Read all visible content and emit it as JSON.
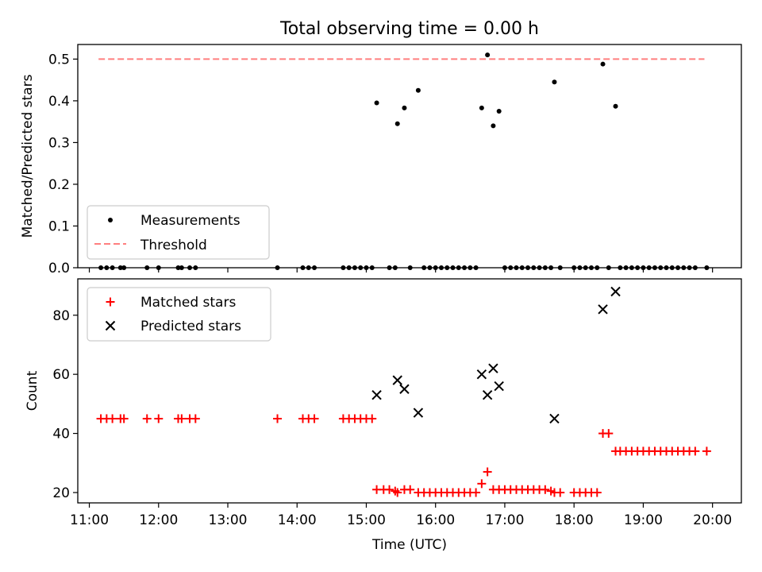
{
  "figure": {
    "title": "Total observing time = 0.00 h"
  },
  "chart_data": [
    {
      "type": "scatter",
      "panel": "ratio",
      "ylabel": "Matched/Predicted stars",
      "ylim": [
        0,
        0.535
      ],
      "yticks": [
        0.0,
        0.1,
        0.2,
        0.3,
        0.4,
        0.5
      ],
      "ytick_labels": [
        "0.0",
        "0.1",
        "0.2",
        "0.3",
        "0.4",
        "0.5"
      ],
      "grid": false,
      "legend_position": "lower-left",
      "series": [
        {
          "name": "Measurements",
          "marker": "dot",
          "color": "#000000",
          "points": [
            [
              "11:10",
              0
            ],
            [
              "11:15",
              0
            ],
            [
              "11:20",
              0
            ],
            [
              "11:27",
              0
            ],
            [
              "11:30",
              0
            ],
            [
              "11:50",
              0
            ],
            [
              "12:00",
              0
            ],
            [
              "12:17",
              0
            ],
            [
              "12:20",
              0
            ],
            [
              "12:27",
              0
            ],
            [
              "12:32",
              0
            ],
            [
              "13:43",
              0
            ],
            [
              "14:05",
              0
            ],
            [
              "14:10",
              0
            ],
            [
              "14:15",
              0
            ],
            [
              "14:40",
              0
            ],
            [
              "14:45",
              0
            ],
            [
              "14:50",
              0
            ],
            [
              "14:55",
              0
            ],
            [
              "15:00",
              0
            ],
            [
              "15:05",
              0
            ],
            [
              "15:09",
              0.395
            ],
            [
              "15:20",
              0
            ],
            [
              "15:25",
              0
            ],
            [
              "15:27",
              0.345
            ],
            [
              "15:33",
              0.383
            ],
            [
              "15:38",
              0
            ],
            [
              "15:45",
              0.425
            ],
            [
              "15:50",
              0
            ],
            [
              "15:55",
              0
            ],
            [
              "16:00",
              0
            ],
            [
              "16:05",
              0
            ],
            [
              "16:10",
              0
            ],
            [
              "16:15",
              0
            ],
            [
              "16:20",
              0
            ],
            [
              "16:25",
              0
            ],
            [
              "16:30",
              0
            ],
            [
              "16:35",
              0
            ],
            [
              "16:40",
              0.383
            ],
            [
              "16:45",
              0.51
            ],
            [
              "16:50",
              0.34
            ],
            [
              "16:55",
              0.375
            ],
            [
              "17:00",
              0
            ],
            [
              "17:05",
              0
            ],
            [
              "17:10",
              0
            ],
            [
              "17:15",
              0
            ],
            [
              "17:20",
              0
            ],
            [
              "17:25",
              0
            ],
            [
              "17:30",
              0
            ],
            [
              "17:35",
              0
            ],
            [
              "17:40",
              0
            ],
            [
              "17:43",
              0.445
            ],
            [
              "17:48",
              0
            ],
            [
              "18:00",
              0
            ],
            [
              "18:05",
              0
            ],
            [
              "18:10",
              0
            ],
            [
              "18:15",
              0
            ],
            [
              "18:20",
              0
            ],
            [
              "18:25",
              0.488
            ],
            [
              "18:30",
              0
            ],
            [
              "18:36",
              0.387
            ],
            [
              "18:40",
              0
            ],
            [
              "18:45",
              0
            ],
            [
              "18:50",
              0
            ],
            [
              "18:55",
              0
            ],
            [
              "19:00",
              0
            ],
            [
              "19:05",
              0
            ],
            [
              "19:10",
              0
            ],
            [
              "19:15",
              0
            ],
            [
              "19:20",
              0
            ],
            [
              "19:25",
              0
            ],
            [
              "19:30",
              0
            ],
            [
              "19:35",
              0
            ],
            [
              "19:40",
              0
            ],
            [
              "19:45",
              0
            ],
            [
              "19:55",
              0
            ]
          ]
        },
        {
          "name": "Threshold",
          "style": "dashed-line",
          "color": "#ff7f7f",
          "points": [
            [
              "11:08",
              0.5
            ],
            [
              "19:53",
              0.5
            ]
          ]
        }
      ]
    },
    {
      "type": "scatter",
      "panel": "count",
      "xlabel": "Time (UTC)",
      "ylabel": "Count",
      "xlim": [
        "10:50",
        "20:25"
      ],
      "xticks": [
        "11:00",
        "12:00",
        "13:00",
        "14:00",
        "15:00",
        "16:00",
        "17:00",
        "18:00",
        "19:00",
        "20:00"
      ],
      "ylim": [
        16.5,
        92.3
      ],
      "yticks": [
        20,
        40,
        60,
        80
      ],
      "ytick_labels": [
        "20",
        "40",
        "60",
        "80"
      ],
      "grid": false,
      "legend_position": "upper-left",
      "series": [
        {
          "name": "Matched stars",
          "marker": "plus",
          "color": "#ff0000",
          "points": [
            [
              "11:10",
              45
            ],
            [
              "11:15",
              45
            ],
            [
              "11:20",
              45
            ],
            [
              "11:27",
              45
            ],
            [
              "11:30",
              45
            ],
            [
              "11:50",
              45
            ],
            [
              "12:00",
              45
            ],
            [
              "12:17",
              45
            ],
            [
              "12:20",
              45
            ],
            [
              "12:27",
              45
            ],
            [
              "12:32",
              45
            ],
            [
              "13:43",
              45
            ],
            [
              "14:05",
              45
            ],
            [
              "14:10",
              45
            ],
            [
              "14:15",
              45
            ],
            [
              "14:40",
              45
            ],
            [
              "14:45",
              45
            ],
            [
              "14:50",
              45
            ],
            [
              "14:55",
              45
            ],
            [
              "15:00",
              45
            ],
            [
              "15:05",
              45
            ],
            [
              "15:09",
              21
            ],
            [
              "15:15",
              21
            ],
            [
              "15:20",
              21
            ],
            [
              "15:25",
              20.5
            ],
            [
              "15:27",
              20
            ],
            [
              "15:33",
              21
            ],
            [
              "15:38",
              21
            ],
            [
              "15:45",
              20
            ],
            [
              "15:50",
              20
            ],
            [
              "15:55",
              20
            ],
            [
              "16:00",
              20
            ],
            [
              "16:05",
              20
            ],
            [
              "16:10",
              20
            ],
            [
              "16:15",
              20
            ],
            [
              "16:20",
              20
            ],
            [
              "16:25",
              20
            ],
            [
              "16:30",
              20
            ],
            [
              "16:35",
              20
            ],
            [
              "16:40",
              23
            ],
            [
              "16:45",
              27
            ],
            [
              "16:50",
              21
            ],
            [
              "16:55",
              21
            ],
            [
              "17:00",
              21
            ],
            [
              "17:05",
              21
            ],
            [
              "17:10",
              21
            ],
            [
              "17:15",
              21
            ],
            [
              "17:20",
              21
            ],
            [
              "17:25",
              21
            ],
            [
              "17:30",
              21
            ],
            [
              "17:35",
              21
            ],
            [
              "17:40",
              20.5
            ],
            [
              "17:43",
              20
            ],
            [
              "17:48",
              20
            ],
            [
              "18:00",
              20
            ],
            [
              "18:05",
              20
            ],
            [
              "18:10",
              20
            ],
            [
              "18:15",
              20
            ],
            [
              "18:20",
              20
            ],
            [
              "18:25",
              40
            ],
            [
              "18:30",
              40
            ],
            [
              "18:36",
              34
            ],
            [
              "18:40",
              34
            ],
            [
              "18:45",
              34
            ],
            [
              "18:50",
              34
            ],
            [
              "18:55",
              34
            ],
            [
              "19:00",
              34
            ],
            [
              "19:05",
              34
            ],
            [
              "19:10",
              34
            ],
            [
              "19:15",
              34
            ],
            [
              "19:20",
              34
            ],
            [
              "19:25",
              34
            ],
            [
              "19:30",
              34
            ],
            [
              "19:35",
              34
            ],
            [
              "19:40",
              34
            ],
            [
              "19:45",
              34
            ],
            [
              "19:55",
              34
            ]
          ]
        },
        {
          "name": "Predicted stars",
          "marker": "x",
          "color": "#000000",
          "points": [
            [
              "15:09",
              53
            ],
            [
              "15:27",
              58
            ],
            [
              "15:33",
              55
            ],
            [
              "15:45",
              47
            ],
            [
              "16:40",
              60
            ],
            [
              "16:45",
              53
            ],
            [
              "16:50",
              62
            ],
            [
              "16:55",
              56
            ],
            [
              "17:43",
              45
            ],
            [
              "18:25",
              82
            ],
            [
              "18:36",
              88
            ]
          ]
        }
      ]
    }
  ]
}
